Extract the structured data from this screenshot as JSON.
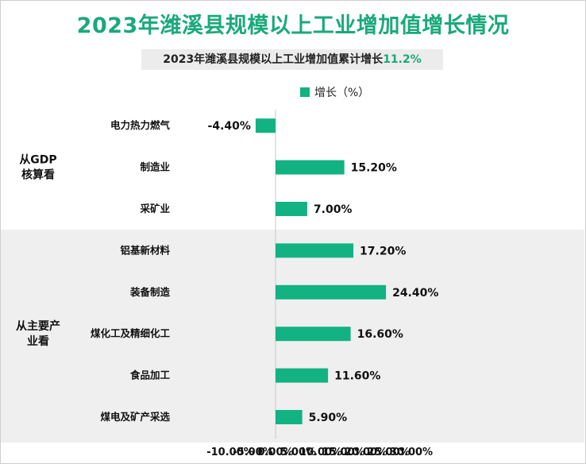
{
  "title": "2023年潍溪县规模以上工业增加值增长情况",
  "subtitle": {
    "text": "2023年潍溪县规模以上工业增加值累计增长",
    "value": "11.2%"
  },
  "legend": {
    "label": "增长（%）"
  },
  "colors": {
    "bar": "#12b283",
    "title": "#1aa97a",
    "band": "#efefef"
  },
  "chart_data": {
    "type": "bar",
    "orientation": "horizontal",
    "categories": [
      "电力热力燃气",
      "制造业",
      "采矿业",
      "铝基新材料",
      "装备制造",
      "煤化工及精细化工",
      "食品加工",
      "煤电及矿产采选"
    ],
    "series": [
      {
        "name": "增长（%）",
        "values": [
          -4.4,
          15.2,
          7.0,
          17.2,
          24.4,
          16.6,
          11.6,
          5.9
        ]
      }
    ],
    "data_labels": [
      "-4.40%",
      "15.20%",
      "7.00%",
      "17.20%",
      "24.40%",
      "16.60%",
      "11.60%",
      "5.90%"
    ],
    "groups": [
      {
        "label": "从GDP\n核算看",
        "categories": [
          0,
          1,
          2
        ]
      },
      {
        "label": "从主要产\n业看",
        "categories": [
          3,
          4,
          5,
          6,
          7
        ]
      }
    ],
    "xlim": [
      -10,
      30
    ],
    "xticks": [
      -10,
      -5,
      0,
      5,
      10,
      15,
      20,
      25,
      30
    ],
    "xtick_labels": [
      "-10.00%",
      "-5.00%",
      "0.00%",
      "5.00%",
      "10.00%",
      "15.00%",
      "20.00%",
      "25.00%",
      "30.00%"
    ],
    "legend_position": "top"
  }
}
